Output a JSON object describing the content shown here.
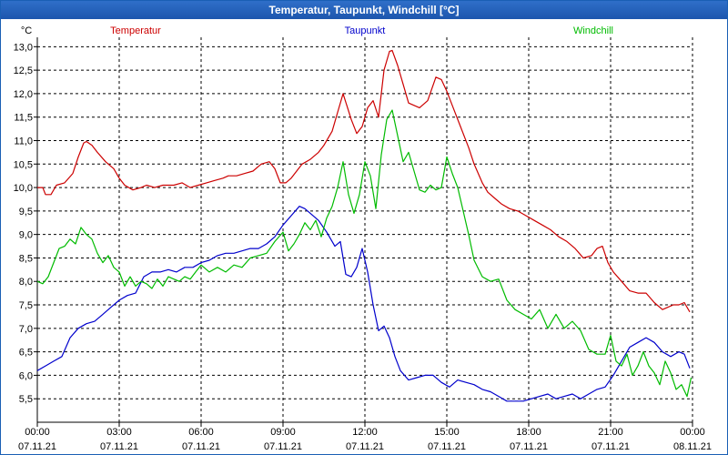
{
  "window": {
    "title": "Temperatur, Taupunkt, Windchill [°C]"
  },
  "chart_data": {
    "type": "line",
    "title": "Temperatur, Taupunkt, Windchill [°C]",
    "ylabel": "°C",
    "ylim": [
      5.0,
      13.2
    ],
    "xlim": [
      0,
      24
    ],
    "grid": true,
    "legend_position": "top",
    "yticks": [
      5.5,
      6.0,
      6.5,
      7.0,
      7.5,
      8.0,
      8.5,
      9.0,
      9.5,
      10.0,
      10.5,
      11.0,
      11.5,
      12.0,
      12.5,
      13.0
    ],
    "ytick_labels": [
      "5,5",
      "6,0",
      "6,5",
      "7,0",
      "7,5",
      "8,0",
      "8,5",
      "9,0",
      "9,5",
      "10,0",
      "10,5",
      "11,0",
      "11,5",
      "12,0",
      "12,5",
      "13,0"
    ],
    "xticks": [
      {
        "x": 0,
        "time": "00:00",
        "date": "07.11.21"
      },
      {
        "x": 3,
        "time": "03:00",
        "date": "07.11.21"
      },
      {
        "x": 6,
        "time": "06:00",
        "date": "07.11.21"
      },
      {
        "x": 9,
        "time": "09:00",
        "date": "07.11.21"
      },
      {
        "x": 12,
        "time": "12:00",
        "date": "07.11.21"
      },
      {
        "x": 15,
        "time": "15:00",
        "date": "07.11.21"
      },
      {
        "x": 18,
        "time": "18:00",
        "date": "07.11.21"
      },
      {
        "x": 21,
        "time": "21:00",
        "date": "07.11.21"
      },
      {
        "x": 24,
        "time": "00:00",
        "date": "08.11.21"
      }
    ],
    "series": [
      {
        "name": "Temperatur",
        "color": "#cc0000",
        "x": [
          0,
          0.2,
          0.3,
          0.5,
          0.7,
          1.0,
          1.3,
          1.5,
          1.7,
          1.8,
          2.0,
          2.2,
          2.5,
          2.8,
          3.0,
          3.2,
          3.5,
          3.8,
          4.0,
          4.3,
          4.6,
          5.0,
          5.3,
          5.6,
          5.9,
          6.2,
          6.5,
          6.8,
          7.0,
          7.3,
          7.6,
          7.9,
          8.2,
          8.5,
          8.7,
          8.9,
          9.1,
          9.3,
          9.5,
          9.7,
          10.0,
          10.3,
          10.5,
          10.8,
          11.0,
          11.2,
          11.5,
          11.7,
          11.9,
          12.1,
          12.3,
          12.5,
          12.7,
          12.9,
          13.0,
          13.2,
          13.4,
          13.6,
          13.8,
          14.0,
          14.3,
          14.6,
          14.8,
          15.0,
          15.2,
          15.5,
          15.8,
          16.0,
          16.3,
          16.5,
          16.8,
          17.0,
          17.3,
          17.6,
          17.9,
          18.2,
          18.5,
          18.8,
          19.1,
          19.4,
          19.7,
          20.0,
          20.3,
          20.5,
          20.7,
          20.9,
          21.1,
          21.4,
          21.7,
          22.0,
          22.3,
          22.6,
          22.9,
          23.1,
          23.3,
          23.5,
          23.7,
          23.9
        ],
        "values": [
          10.0,
          10.0,
          9.85,
          9.85,
          10.05,
          10.1,
          10.3,
          10.65,
          10.95,
          10.98,
          10.9,
          10.75,
          10.55,
          10.4,
          10.2,
          10.05,
          9.95,
          10.0,
          10.05,
          10.0,
          10.05,
          10.05,
          10.1,
          10.0,
          10.05,
          10.1,
          10.15,
          10.2,
          10.25,
          10.25,
          10.3,
          10.35,
          10.5,
          10.55,
          10.4,
          10.1,
          10.1,
          10.2,
          10.35,
          10.5,
          10.6,
          10.75,
          10.9,
          11.2,
          11.6,
          12.0,
          11.45,
          11.15,
          11.3,
          11.7,
          11.85,
          11.5,
          12.5,
          12.9,
          12.92,
          12.6,
          12.2,
          11.8,
          11.75,
          11.7,
          11.85,
          12.35,
          12.3,
          12.05,
          11.75,
          11.3,
          10.85,
          10.5,
          10.1,
          9.9,
          9.75,
          9.65,
          9.55,
          9.5,
          9.4,
          9.3,
          9.2,
          9.1,
          8.95,
          8.85,
          8.7,
          8.5,
          8.55,
          8.7,
          8.75,
          8.4,
          8.2,
          8.0,
          7.8,
          7.75,
          7.75,
          7.55,
          7.4,
          7.45,
          7.5,
          7.5,
          7.55,
          7.35
        ]
      },
      {
        "name": "Taupunkt",
        "color": "#0000cc",
        "x": [
          0,
          0.3,
          0.6,
          0.9,
          1.2,
          1.5,
          1.8,
          2.1,
          2.4,
          2.7,
          3.0,
          3.3,
          3.6,
          3.9,
          4.2,
          4.5,
          4.8,
          5.1,
          5.4,
          5.7,
          6.0,
          6.3,
          6.6,
          6.9,
          7.2,
          7.5,
          7.8,
          8.1,
          8.4,
          8.7,
          9.0,
          9.3,
          9.6,
          9.8,
          10.0,
          10.3,
          10.6,
          10.9,
          11.1,
          11.3,
          11.5,
          11.7,
          11.9,
          12.1,
          12.3,
          12.5,
          12.7,
          12.9,
          13.1,
          13.3,
          13.6,
          13.9,
          14.2,
          14.5,
          14.8,
          15.1,
          15.4,
          15.7,
          16.0,
          16.3,
          16.6,
          16.9,
          17.2,
          17.5,
          17.8,
          18.1,
          18.4,
          18.7,
          19.0,
          19.3,
          19.6,
          19.9,
          20.2,
          20.5,
          20.8,
          21.1,
          21.4,
          21.7,
          22.0,
          22.3,
          22.6,
          22.9,
          23.2,
          23.5,
          23.7,
          23.9
        ],
        "values": [
          6.1,
          6.2,
          6.3,
          6.4,
          6.8,
          7.0,
          7.1,
          7.15,
          7.3,
          7.45,
          7.6,
          7.7,
          7.75,
          8.1,
          8.2,
          8.2,
          8.25,
          8.2,
          8.3,
          8.3,
          8.4,
          8.45,
          8.55,
          8.6,
          8.6,
          8.65,
          8.7,
          8.7,
          8.8,
          8.95,
          9.2,
          9.4,
          9.6,
          9.55,
          9.45,
          9.3,
          9.05,
          8.75,
          8.85,
          8.15,
          8.1,
          8.3,
          8.7,
          8.2,
          7.5,
          6.95,
          7.05,
          6.8,
          6.4,
          6.1,
          5.9,
          5.95,
          6.0,
          6.0,
          5.85,
          5.75,
          5.9,
          5.85,
          5.8,
          5.7,
          5.65,
          5.55,
          5.45,
          5.45,
          5.45,
          5.5,
          5.55,
          5.6,
          5.5,
          5.55,
          5.6,
          5.5,
          5.6,
          5.7,
          5.75,
          6.0,
          6.3,
          6.6,
          6.7,
          6.8,
          6.7,
          6.5,
          6.4,
          6.5,
          6.45,
          6.15
        ]
      },
      {
        "name": "Windchill",
        "color": "#00bb00",
        "x": [
          0,
          0.2,
          0.4,
          0.6,
          0.8,
          1.0,
          1.2,
          1.4,
          1.6,
          1.8,
          2.0,
          2.2,
          2.4,
          2.6,
          2.8,
          3.0,
          3.2,
          3.4,
          3.6,
          3.8,
          4.0,
          4.2,
          4.4,
          4.6,
          4.8,
          5.0,
          5.2,
          5.4,
          5.6,
          5.8,
          6.0,
          6.3,
          6.6,
          6.9,
          7.2,
          7.5,
          7.8,
          8.1,
          8.4,
          8.7,
          9.0,
          9.2,
          9.4,
          9.6,
          9.8,
          10.0,
          10.2,
          10.4,
          10.6,
          10.8,
          11.0,
          11.2,
          11.4,
          11.6,
          11.8,
          12.0,
          12.2,
          12.4,
          12.6,
          12.8,
          13.0,
          13.2,
          13.4,
          13.6,
          13.8,
          14.0,
          14.2,
          14.4,
          14.6,
          14.8,
          15.0,
          15.2,
          15.4,
          15.6,
          15.8,
          16.0,
          16.3,
          16.6,
          16.9,
          17.2,
          17.5,
          17.8,
          18.1,
          18.4,
          18.7,
          19.0,
          19.3,
          19.6,
          19.9,
          20.2,
          20.5,
          20.8,
          21.0,
          21.2,
          21.4,
          21.6,
          21.8,
          22.0,
          22.2,
          22.4,
          22.6,
          22.8,
          23.0,
          23.2,
          23.4,
          23.6,
          23.8,
          23.95
        ],
        "values": [
          8.0,
          7.95,
          8.1,
          8.4,
          8.7,
          8.75,
          8.9,
          8.8,
          9.15,
          9.0,
          8.9,
          8.6,
          8.4,
          8.55,
          8.3,
          8.2,
          7.9,
          8.1,
          7.9,
          8.0,
          7.95,
          7.85,
          8.05,
          7.9,
          8.1,
          8.05,
          8.0,
          8.1,
          8.05,
          8.2,
          8.35,
          8.2,
          8.3,
          8.2,
          8.35,
          8.3,
          8.5,
          8.55,
          8.6,
          8.85,
          9.05,
          8.65,
          8.8,
          9.0,
          9.25,
          9.1,
          9.3,
          8.95,
          9.35,
          9.6,
          10.0,
          10.55,
          9.85,
          9.45,
          9.85,
          10.55,
          10.25,
          9.55,
          10.7,
          11.45,
          11.65,
          11.1,
          10.55,
          10.75,
          10.35,
          9.95,
          9.9,
          10.05,
          9.95,
          10.0,
          10.65,
          10.3,
          10.0,
          9.5,
          9.0,
          8.45,
          8.1,
          8.0,
          8.05,
          7.6,
          7.4,
          7.3,
          7.2,
          7.4,
          7.0,
          7.3,
          7.0,
          7.15,
          6.95,
          6.55,
          6.45,
          6.45,
          6.85,
          6.3,
          6.2,
          6.45,
          6.0,
          6.2,
          6.5,
          6.2,
          6.05,
          5.8,
          6.3,
          6.05,
          5.7,
          5.8,
          5.55,
          5.95
        ]
      }
    ]
  }
}
